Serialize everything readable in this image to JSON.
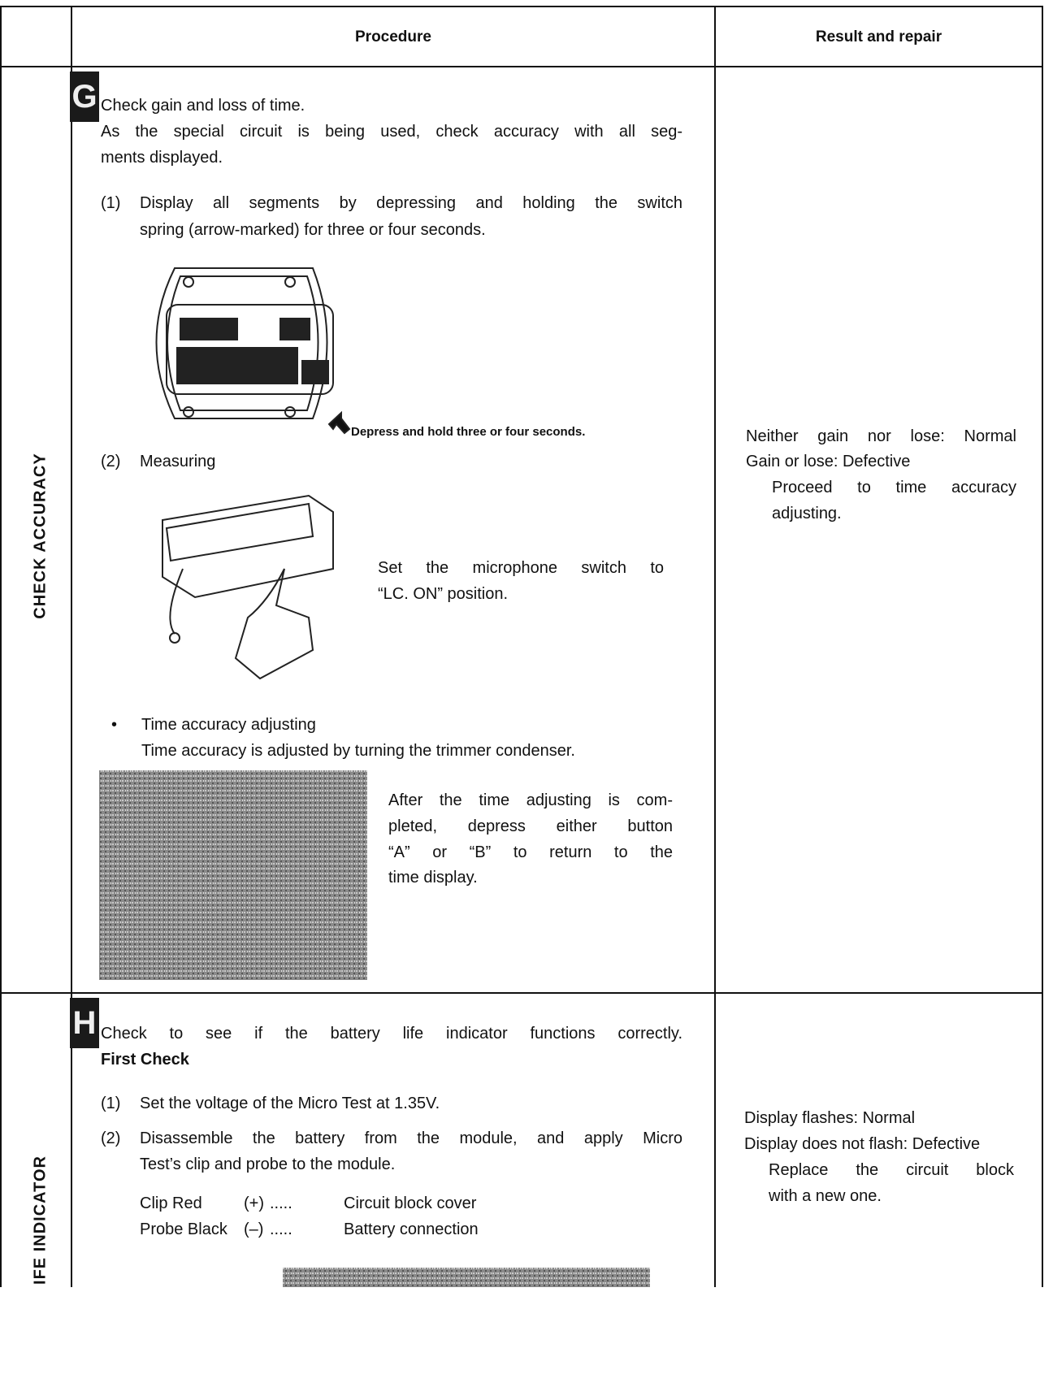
{
  "header": {
    "procedure": "Procedure",
    "result": "Result and repair"
  },
  "sections": [
    {
      "letter": "G",
      "label": "CHECK ACCURACY",
      "procedure": {
        "intro": [
          "Check gain and loss of time.",
          "As the special circuit is being used, check accuracy with all seg-",
          "ments displayed."
        ],
        "step1": {
          "num": "(1)",
          "lines": [
            "Display all segments by depressing and holding the switch",
            "spring (arrow-marked) for three or four seconds."
          ]
        },
        "caption": "Depress and hold three or four seconds.",
        "step2": {
          "num": "(2)",
          "text": "Measuring"
        },
        "microphone": [
          "Set the microphone switch to",
          "“LC. ON” position."
        ],
        "bullet": {
          "mark": "•",
          "title": "Time accuracy adjusting",
          "text": "Time accuracy is adjusted by turning the trimmer condenser."
        },
        "after": [
          "After the time adjusting is com-",
          "pleted, depress either button",
          "“A” or “B” to return to the",
          "time display."
        ]
      },
      "result": [
        "Neither gain nor lose: Normal",
        "Gain or lose: Defective",
        "Proceed to time accuracy",
        "adjusting."
      ]
    },
    {
      "letter": "H",
      "label": "IFE INDICATOR",
      "procedure": {
        "intro": "Check to see if the battery life indicator functions correctly.",
        "subtitle": "First Check",
        "step1": {
          "num": "(1)",
          "text": "Set the voltage of the Micro Test at 1.35V."
        },
        "step2": {
          "num": "(2)",
          "lines": [
            "Disassemble the battery from the module, and apply Micro",
            "Test’s clip and probe to the module."
          ]
        },
        "connections": [
          [
            "Clip Red",
            "(+)",
            ".....",
            "Circuit block cover"
          ],
          [
            "Probe Black",
            "(–)",
            ".....",
            "Battery connection"
          ]
        ]
      },
      "result": [
        "Display flashes: Normal",
        "Display does not flash: Defective",
        "Replace the circuit block",
        "with a new one."
      ]
    }
  ]
}
